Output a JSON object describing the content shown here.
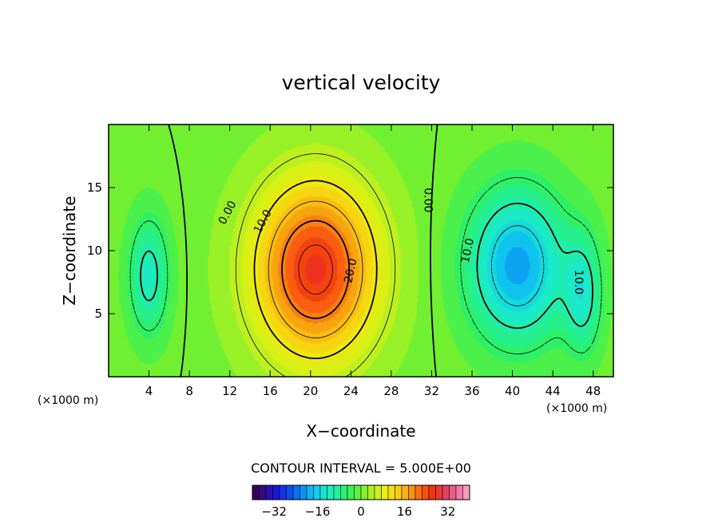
{
  "chart_data": {
    "type": "heatmap",
    "title": "vertical velocity",
    "xlabel": "X−coordinate",
    "ylabel": "Z−coordinate",
    "x_unit": "(×1000 m)",
    "z_unit": "(×1000 m)",
    "xlim": [
      0,
      50
    ],
    "ylim": [
      0,
      20
    ],
    "x_ticks": [
      4,
      8,
      12,
      16,
      20,
      24,
      28,
      32,
      36,
      40,
      44,
      48
    ],
    "x_tick_labels": [
      "4",
      "8",
      "12",
      "16",
      "20",
      "24",
      "28",
      "32",
      "36",
      "40",
      "44",
      "48"
    ],
    "y_ticks": [
      5,
      10,
      15
    ],
    "y_tick_labels": [
      "5",
      "10",
      "15"
    ],
    "contour_interval_text": "CONTOUR INTERVAL = 5.000E+00",
    "contour_interval": 5,
    "contour_labels": [
      {
        "text": "0.00",
        "x": 11.8,
        "z": 13.0,
        "rotate": -62
      },
      {
        "text": "10.0",
        "x": 15.3,
        "z": 12.3,
        "rotate": -62
      },
      {
        "text": "20.0",
        "x": 24.0,
        "z": 8.4,
        "rotate": -78
      },
      {
        "text": "0.00",
        "x": 31.6,
        "z": 14.0,
        "rotate": 90
      },
      {
        "text": "10.0",
        "x": 35.6,
        "z": 10.0,
        "rotate": -78
      },
      {
        "text": "10.0",
        "x": 46.5,
        "z": 7.5,
        "rotate": 90
      }
    ],
    "features": [
      {
        "kind": "updraft",
        "x": 20.5,
        "z": 8.5,
        "max": 27
      },
      {
        "kind": "downdraft",
        "x": 40.5,
        "z": 8.8,
        "min": -20
      },
      {
        "kind": "downdraft",
        "x": 4.0,
        "z": 8.0,
        "min": -12
      },
      {
        "kind": "downdraft",
        "x": 47.0,
        "z": 6.5,
        "min": -11
      }
    ],
    "colorbar": {
      "min": -40,
      "max": 40,
      "ticks": [
        -32,
        -16,
        0,
        16,
        32
      ],
      "tick_labels": [
        "−32",
        "−16",
        "0",
        "16",
        "32"
      ],
      "colors": [
        "#30004a",
        "#3a0a8c",
        "#1818d8",
        "#0a4af0",
        "#0a86f0",
        "#10c0f0",
        "#18e8d0",
        "#20f0a0",
        "#30f060",
        "#70f030",
        "#b8f020",
        "#e8f010",
        "#f8d010",
        "#f8a010",
        "#f86010",
        "#f03010",
        "#e04060",
        "#f070a0",
        "#f8b0c8"
      ],
      "grid": "on"
    },
    "grid": "off"
  }
}
